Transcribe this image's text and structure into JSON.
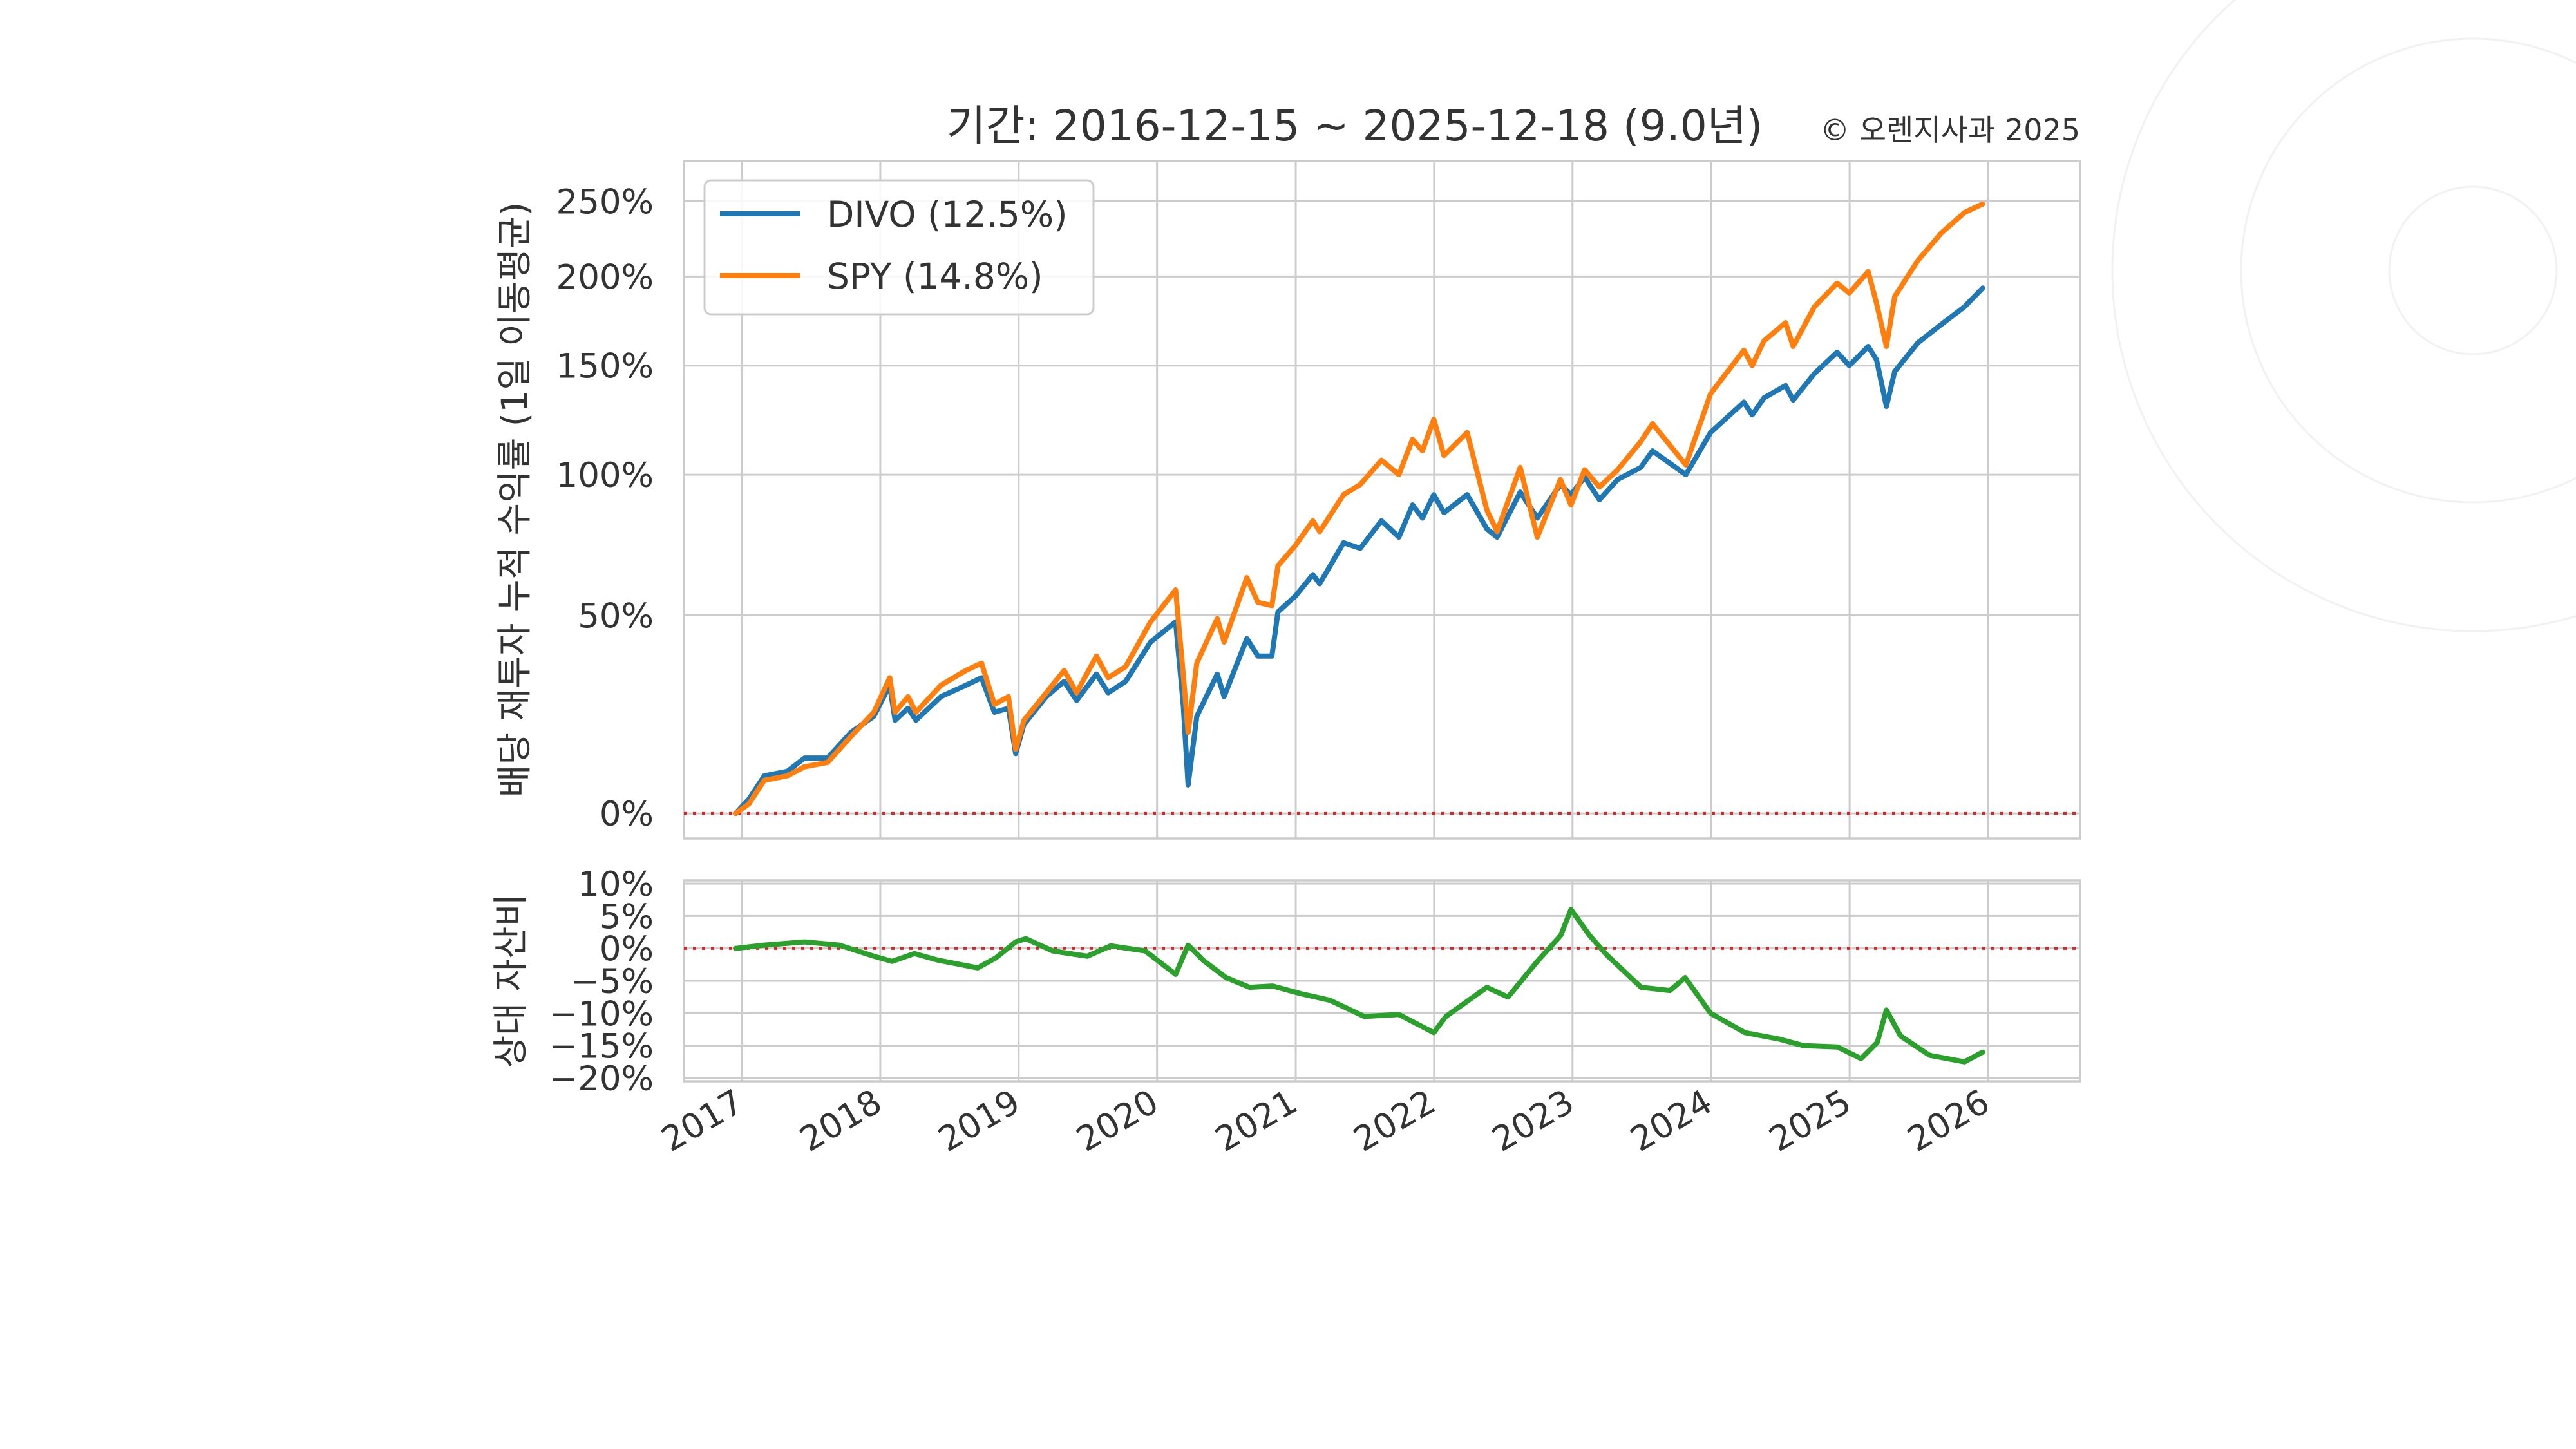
{
  "title": {
    "main": "기간: 2016-12-15 ~ 2025-12-18 (9.0년)",
    "credit": "© 오렌지사과 2025"
  },
  "colors": {
    "divo": "#1f77b4",
    "spy": "#ff7f0e",
    "relative": "#2ca02c",
    "zero_line": "#d62728",
    "grid": "#cccccc",
    "background": "#ffffff"
  },
  "chart_data": [
    {
      "type": "line",
      "panel": "cumulative",
      "ylabel": "배당 재투자 누적 수익률 (1일 이동평균)",
      "y_scale": "log(1+r)",
      "ylim": [
        -0.05,
        2.8
      ],
      "xlim": [
        "2016-08-01",
        "2026-09-01"
      ],
      "yticks": [
        {
          "value": 0,
          "label": "0%"
        },
        {
          "value": 0.5,
          "label": "50%"
        },
        {
          "value": 1.0,
          "label": "100%"
        },
        {
          "value": 1.5,
          "label": "150%"
        },
        {
          "value": 2.0,
          "label": "200%"
        },
        {
          "value": 2.5,
          "label": "250%"
        }
      ],
      "xticks": [
        "2017-01-01",
        "2018-01-01",
        "2019-01-01",
        "2020-01-01",
        "2021-01-01",
        "2022-01-01",
        "2023-01-01",
        "2024-01-01",
        "2025-01-01",
        "2026-01-01"
      ],
      "xtick_labels": [
        "2017",
        "2018",
        "2019",
        "2020",
        "2021",
        "2022",
        "2023",
        "2024",
        "2025",
        "2026"
      ],
      "legend_position": "upper-left",
      "reference_line": 0,
      "series": [
        {
          "name": "DIVO (12.5%)",
          "key": "divo",
          "points": [
            [
              "2016-12-15",
              0.0
            ],
            [
              "2017-01-20",
              0.03
            ],
            [
              "2017-03-01",
              0.08
            ],
            [
              "2017-05-01",
              0.09
            ],
            [
              "2017-06-15",
              0.12
            ],
            [
              "2017-08-15",
              0.12
            ],
            [
              "2017-10-15",
              0.18
            ],
            [
              "2017-12-15",
              0.22
            ],
            [
              "2018-01-26",
              0.3
            ],
            [
              "2018-02-09",
              0.21
            ],
            [
              "2018-03-15",
              0.24
            ],
            [
              "2018-04-05",
              0.21
            ],
            [
              "2018-06-10",
              0.27
            ],
            [
              "2018-08-15",
              0.3
            ],
            [
              "2018-09-25",
              0.32
            ],
            [
              "2018-10-29",
              0.23
            ],
            [
              "2018-12-05",
              0.24
            ],
            [
              "2018-12-24",
              0.13
            ],
            [
              "2019-01-15",
              0.2
            ],
            [
              "2019-03-15",
              0.27
            ],
            [
              "2019-05-01",
              0.31
            ],
            [
              "2019-06-03",
              0.26
            ],
            [
              "2019-07-25",
              0.33
            ],
            [
              "2019-08-25",
              0.28
            ],
            [
              "2019-10-10",
              0.31
            ],
            [
              "2019-12-15",
              0.42
            ],
            [
              "2020-02-19",
              0.48
            ],
            [
              "2020-03-10",
              0.25
            ],
            [
              "2020-03-23",
              0.06
            ],
            [
              "2020-04-15",
              0.22
            ],
            [
              "2020-06-08",
              0.33
            ],
            [
              "2020-06-26",
              0.27
            ],
            [
              "2020-08-25",
              0.43
            ],
            [
              "2020-09-23",
              0.38
            ],
            [
              "2020-10-30",
              0.38
            ],
            [
              "2020-11-15",
              0.51
            ],
            [
              "2020-12-31",
              0.56
            ],
            [
              "2021-02-15",
              0.63
            ],
            [
              "2021-03-05",
              0.6
            ],
            [
              "2021-05-07",
              0.74
            ],
            [
              "2021-06-20",
              0.72
            ],
            [
              "2021-08-15",
              0.82
            ],
            [
              "2021-09-30",
              0.76
            ],
            [
              "2021-11-05",
              0.88
            ],
            [
              "2021-12-01",
              0.83
            ],
            [
              "2021-12-31",
              0.92
            ],
            [
              "2022-01-27",
              0.85
            ],
            [
              "2022-03-29",
              0.92
            ],
            [
              "2022-05-20",
              0.79
            ],
            [
              "2022-06-16",
              0.76
            ],
            [
              "2022-08-16",
              0.93
            ],
            [
              "2022-09-30",
              0.83
            ],
            [
              "2022-11-30",
              0.96
            ],
            [
              "2022-12-28",
              0.92
            ],
            [
              "2023-02-02",
              0.99
            ],
            [
              "2023-03-13",
              0.9
            ],
            [
              "2023-04-30",
              0.98
            ],
            [
              "2023-06-30",
              1.03
            ],
            [
              "2023-07-31",
              1.1
            ],
            [
              "2023-10-27",
              1.0
            ],
            [
              "2023-12-31",
              1.18
            ],
            [
              "2024-03-28",
              1.32
            ],
            [
              "2024-04-19",
              1.26
            ],
            [
              "2024-05-20",
              1.34
            ],
            [
              "2024-07-16",
              1.4
            ],
            [
              "2024-08-05",
              1.33
            ],
            [
              "2024-09-30",
              1.46
            ],
            [
              "2024-11-29",
              1.57
            ],
            [
              "2024-12-31",
              1.5
            ],
            [
              "2025-02-19",
              1.6
            ],
            [
              "2025-03-13",
              1.53
            ],
            [
              "2025-04-08",
              1.3
            ],
            [
              "2025-04-30",
              1.47
            ],
            [
              "2025-06-30",
              1.62
            ],
            [
              "2025-08-31",
              1.72
            ],
            [
              "2025-10-31",
              1.82
            ],
            [
              "2025-12-18",
              1.93
            ]
          ]
        },
        {
          "name": "SPY (14.8%)",
          "key": "spy",
          "points": [
            [
              "2016-12-15",
              0.0
            ],
            [
              "2017-01-20",
              0.02
            ],
            [
              "2017-03-01",
              0.07
            ],
            [
              "2017-05-01",
              0.08
            ],
            [
              "2017-06-15",
              0.1
            ],
            [
              "2017-08-15",
              0.11
            ],
            [
              "2017-10-15",
              0.17
            ],
            [
              "2017-12-15",
              0.23
            ],
            [
              "2018-01-26",
              0.32
            ],
            [
              "2018-02-09",
              0.23
            ],
            [
              "2018-03-15",
              0.27
            ],
            [
              "2018-04-05",
              0.23
            ],
            [
              "2018-06-10",
              0.3
            ],
            [
              "2018-08-15",
              0.34
            ],
            [
              "2018-09-25",
              0.36
            ],
            [
              "2018-10-29",
              0.25
            ],
            [
              "2018-12-05",
              0.27
            ],
            [
              "2018-12-24",
              0.14
            ],
            [
              "2019-01-15",
              0.21
            ],
            [
              "2019-03-15",
              0.28
            ],
            [
              "2019-05-01",
              0.34
            ],
            [
              "2019-06-03",
              0.28
            ],
            [
              "2019-07-25",
              0.38
            ],
            [
              "2019-08-25",
              0.32
            ],
            [
              "2019-10-10",
              0.35
            ],
            [
              "2019-12-15",
              0.48
            ],
            [
              "2020-02-19",
              0.58
            ],
            [
              "2020-03-10",
              0.33
            ],
            [
              "2020-03-23",
              0.18
            ],
            [
              "2020-04-15",
              0.36
            ],
            [
              "2020-06-08",
              0.49
            ],
            [
              "2020-06-26",
              0.42
            ],
            [
              "2020-08-25",
              0.62
            ],
            [
              "2020-09-23",
              0.54
            ],
            [
              "2020-10-30",
              0.53
            ],
            [
              "2020-11-15",
              0.66
            ],
            [
              "2020-12-31",
              0.73
            ],
            [
              "2021-02-15",
              0.82
            ],
            [
              "2021-03-05",
              0.78
            ],
            [
              "2021-05-07",
              0.92
            ],
            [
              "2021-06-20",
              0.96
            ],
            [
              "2021-08-15",
              1.06
            ],
            [
              "2021-09-30",
              1.0
            ],
            [
              "2021-11-05",
              1.15
            ],
            [
              "2021-12-01",
              1.1
            ],
            [
              "2021-12-31",
              1.24
            ],
            [
              "2022-01-27",
              1.08
            ],
            [
              "2022-03-29",
              1.18
            ],
            [
              "2022-05-20",
              0.86
            ],
            [
              "2022-06-16",
              0.78
            ],
            [
              "2022-08-16",
              1.03
            ],
            [
              "2022-09-30",
              0.76
            ],
            [
              "2022-11-30",
              0.98
            ],
            [
              "2022-12-28",
              0.88
            ],
            [
              "2023-02-02",
              1.02
            ],
            [
              "2023-03-13",
              0.95
            ],
            [
              "2023-04-30",
              1.02
            ],
            [
              "2023-06-30",
              1.14
            ],
            [
              "2023-07-31",
              1.22
            ],
            [
              "2023-10-27",
              1.04
            ],
            [
              "2023-12-31",
              1.36
            ],
            [
              "2024-03-28",
              1.58
            ],
            [
              "2024-04-19",
              1.5
            ],
            [
              "2024-05-20",
              1.63
            ],
            [
              "2024-07-16",
              1.73
            ],
            [
              "2024-08-05",
              1.6
            ],
            [
              "2024-09-30",
              1.82
            ],
            [
              "2024-11-29",
              1.96
            ],
            [
              "2024-12-31",
              1.9
            ],
            [
              "2025-02-19",
              2.03
            ],
            [
              "2025-03-13",
              1.84
            ],
            [
              "2025-04-08",
              1.6
            ],
            [
              "2025-04-30",
              1.88
            ],
            [
              "2025-06-30",
              2.1
            ],
            [
              "2025-08-31",
              2.28
            ],
            [
              "2025-10-31",
              2.42
            ],
            [
              "2025-12-18",
              2.48
            ]
          ]
        }
      ]
    },
    {
      "type": "line",
      "panel": "relative",
      "ylabel": "상대 자산비",
      "ylim": [
        -0.205,
        0.105
      ],
      "xlim": [
        "2016-08-01",
        "2026-09-01"
      ],
      "yticks": [
        {
          "value": 0.1,
          "label": "10%"
        },
        {
          "value": 0.05,
          "label": "5%"
        },
        {
          "value": 0.0,
          "label": "0%"
        },
        {
          "value": -0.05,
          "label": "−5%"
        },
        {
          "value": -0.1,
          "label": "−10%"
        },
        {
          "value": -0.15,
          "label": "−15%"
        },
        {
          "value": -0.2,
          "label": "−20%"
        }
      ],
      "reference_line": 0,
      "series": [
        {
          "key": "relative",
          "points": [
            [
              "2016-12-15",
              0.0
            ],
            [
              "2017-03-01",
              0.005
            ],
            [
              "2017-06-15",
              0.01
            ],
            [
              "2017-09-15",
              0.005
            ],
            [
              "2017-12-15",
              -0.012
            ],
            [
              "2018-02-01",
              -0.02
            ],
            [
              "2018-04-01",
              -0.008
            ],
            [
              "2018-06-01",
              -0.018
            ],
            [
              "2018-09-15",
              -0.03
            ],
            [
              "2018-11-01",
              -0.015
            ],
            [
              "2018-12-24",
              0.01
            ],
            [
              "2019-01-20",
              0.015
            ],
            [
              "2019-04-01",
              -0.004
            ],
            [
              "2019-07-01",
              -0.012
            ],
            [
              "2019-09-01",
              0.004
            ],
            [
              "2019-12-01",
              -0.004
            ],
            [
              "2020-02-19",
              -0.04
            ],
            [
              "2020-03-23",
              0.005
            ],
            [
              "2020-05-01",
              -0.018
            ],
            [
              "2020-07-01",
              -0.045
            ],
            [
              "2020-09-01",
              -0.06
            ],
            [
              "2020-11-01",
              -0.058
            ],
            [
              "2021-01-15",
              -0.07
            ],
            [
              "2021-04-01",
              -0.08
            ],
            [
              "2021-07-01",
              -0.105
            ],
            [
              "2021-09-30",
              -0.102
            ],
            [
              "2021-12-31",
              -0.13
            ],
            [
              "2022-02-01",
              -0.105
            ],
            [
              "2022-05-20",
              -0.06
            ],
            [
              "2022-07-15",
              -0.075
            ],
            [
              "2022-09-30",
              -0.02
            ],
            [
              "2022-12-01",
              0.02
            ],
            [
              "2022-12-28",
              0.06
            ],
            [
              "2023-02-15",
              0.02
            ],
            [
              "2023-04-01",
              -0.01
            ],
            [
              "2023-07-01",
              -0.06
            ],
            [
              "2023-09-15",
              -0.065
            ],
            [
              "2023-10-25",
              -0.045
            ],
            [
              "2023-12-31",
              -0.1
            ],
            [
              "2024-03-31",
              -0.13
            ],
            [
              "2024-06-30",
              -0.14
            ],
            [
              "2024-09-01",
              -0.15
            ],
            [
              "2024-11-30",
              -0.152
            ],
            [
              "2025-01-31",
              -0.17
            ],
            [
              "2025-03-15",
              -0.145
            ],
            [
              "2025-04-08",
              -0.095
            ],
            [
              "2025-05-15",
              -0.135
            ],
            [
              "2025-07-31",
              -0.165
            ],
            [
              "2025-10-31",
              -0.175
            ],
            [
              "2025-12-18",
              -0.16
            ]
          ]
        }
      ]
    }
  ]
}
